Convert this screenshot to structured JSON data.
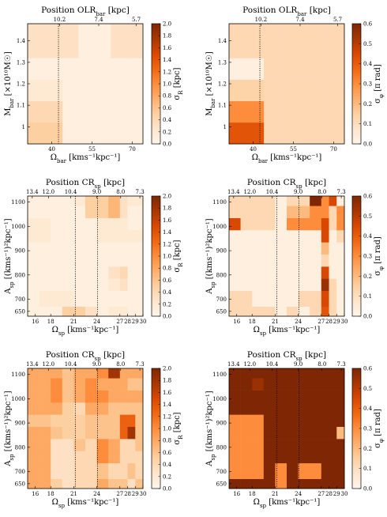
{
  "chart_data": [
    {
      "id": "p1",
      "type": "heatmap",
      "title": "Position OLR_bar [kpc]",
      "top_ticks": [
        "10.2",
        "7.4",
        "5.7"
      ],
      "top_tick_x": [
        42.9,
        57.5,
        71.5
      ],
      "xlabel": "Ω_bar [kms⁻¹kpc⁻¹]",
      "ylabel": "M_bar [×10¹⁰M☉]",
      "x_edges": [
        31,
        38,
        44,
        50,
        56,
        62,
        68,
        74
      ],
      "y_edges": [
        0.92,
        1.02,
        1.12,
        1.22,
        1.32,
        1.42,
        1.48
      ],
      "xlim": [
        31,
        74
      ],
      "ylim": [
        0.92,
        1.48
      ],
      "xticks": [
        40,
        55,
        70
      ],
      "yticks": [
        1.0,
        1.1,
        1.2,
        1.3,
        1.4
      ],
      "vlines": [
        42.5
      ],
      "values": [
        [
          0.5,
          0.5,
          0.1,
          0.1,
          0.1,
          0.1,
          0.1
        ],
        [
          0.4,
          0.4,
          0.1,
          0.1,
          0.1,
          0.1,
          0.1
        ],
        [
          0.2,
          0.2,
          0.1,
          0.1,
          0.1,
          0.1,
          0.1
        ],
        [
          0.1,
          0.1,
          0.1,
          0.1,
          0.1,
          0.1,
          0.1
        ],
        [
          0.3,
          0.3,
          0.3,
          0.1,
          0.1,
          0.3,
          0.3
        ],
        [
          0.3,
          0.3,
          0.3,
          0.1,
          0.1,
          0.3,
          0.3
        ]
      ],
      "colorbar": {
        "label": "σ_R [kpc]",
        "min": 0,
        "max": 2.0,
        "ticks": [
          0.0,
          0.2,
          0.4,
          0.6,
          0.8,
          1.0,
          1.2,
          1.4,
          1.6,
          1.8,
          2.0
        ]
      }
    },
    {
      "id": "p2",
      "type": "heatmap",
      "title": "Position OLR_bar [kpc]",
      "top_ticks": [
        "10.2",
        "7.4",
        "5.7"
      ],
      "top_tick_x": [
        42.9,
        57.5,
        71.5
      ],
      "xlabel": "Ω_bar [kms⁻¹kpc⁻¹]",
      "ylabel": "M_bar [×10¹⁰M☉]",
      "x_edges": [
        31,
        38,
        44,
        50,
        56,
        62,
        68,
        74
      ],
      "y_edges": [
        0.92,
        1.02,
        1.12,
        1.22,
        1.32,
        1.42,
        1.48
      ],
      "xlim": [
        31,
        74
      ],
      "ylim": [
        0.92,
        1.48
      ],
      "xticks": [
        40,
        55,
        70
      ],
      "yticks": [
        1.0,
        1.1,
        1.2,
        1.3,
        1.4
      ],
      "vlines": [
        42.5
      ],
      "values": [
        [
          0.42,
          0.42,
          0.12,
          0.12,
          0.12,
          0.12,
          0.12
        ],
        [
          0.3,
          0.3,
          0.12,
          0.12,
          0.12,
          0.12,
          0.12
        ],
        [
          0.14,
          0.14,
          0.12,
          0.12,
          0.12,
          0.12,
          0.12
        ],
        [
          0.03,
          0.03,
          0.12,
          0.12,
          0.12,
          0.12,
          0.12
        ],
        [
          0.12,
          0.12,
          0.12,
          0.12,
          0.12,
          0.12,
          0.12
        ],
        [
          0.12,
          0.12,
          0.12,
          0.12,
          0.12,
          0.12,
          0.12
        ]
      ],
      "colorbar": {
        "label": "σ_φ [π rad]",
        "min": 0,
        "max": 0.6,
        "ticks": [
          0.0,
          0.1,
          0.2,
          0.3,
          0.4,
          0.5,
          0.6
        ]
      }
    },
    {
      "id": "p3",
      "type": "heatmap",
      "title": "Position CR_sp [kpc]",
      "top_ticks": [
        "13.4",
        "12.0",
        "10.4",
        "9.0",
        "8.0",
        "7.3"
      ],
      "top_tick_x": [
        15.6,
        17.7,
        20.6,
        24.0,
        27.1,
        29.6
      ],
      "xlabel": "Ω_sp [kms⁻¹kpc⁻¹]",
      "ylabel": "A_sp [(kms⁻¹)²kpc⁻¹]",
      "x_edges": [
        15,
        16.5,
        18,
        19.5,
        21,
        22.5,
        24,
        25.5,
        27,
        28,
        29,
        30
      ],
      "y_edges": [
        630,
        670,
        735,
        785,
        835,
        885,
        935,
        985,
        1035,
        1085,
        1125
      ],
      "xlim": [
        15,
        30
      ],
      "ylim": [
        630,
        1125
      ],
      "xticks": [
        16,
        18,
        21,
        24,
        27,
        28,
        29,
        30
      ],
      "yticks": [
        650,
        700,
        800,
        900,
        1000,
        1100
      ],
      "vlines": [
        21.2,
        24.1
      ],
      "values": [
        [
          0.1,
          0.1,
          0.1,
          0.5,
          0.5,
          0.3,
          0.1,
          0.2,
          0.2,
          0.1,
          0.1
        ],
        [
          0.1,
          0.2,
          0.2,
          0.2,
          0.1,
          0.1,
          0.1,
          0.1,
          0.1,
          0.1,
          0.1
        ],
        [
          0.1,
          0.1,
          0.1,
          0.1,
          0.1,
          0.1,
          0.1,
          0.2,
          0.3,
          0.1,
          0.1
        ],
        [
          0.1,
          0.1,
          0.1,
          0.1,
          0.1,
          0.1,
          0.1,
          0.3,
          0.4,
          0.1,
          0.1
        ],
        [
          0.1,
          0.1,
          0.1,
          0.1,
          0.1,
          0.1,
          0.1,
          0.1,
          0.1,
          0.1,
          0.1
        ],
        [
          0.1,
          0.1,
          0.1,
          0.1,
          0.1,
          0.1,
          0.1,
          0.1,
          0.1,
          0.1,
          0.1
        ],
        [
          0.2,
          0.2,
          0.1,
          0.1,
          0.1,
          0.1,
          0.2,
          0.2,
          0.2,
          0.2,
          0.2
        ],
        [
          0.2,
          0.2,
          0.1,
          0.1,
          0.1,
          0.1,
          0.2,
          0.2,
          0.2,
          0.1,
          0.1
        ],
        [
          0.1,
          0.1,
          0.1,
          0.1,
          0.1,
          0.5,
          0.5,
          0.7,
          0.3,
          0.1,
          0.1
        ],
        [
          0.1,
          0.1,
          0.1,
          0.1,
          0.2,
          0.5,
          0.5,
          0.7,
          0.3,
          0.2,
          0.2
        ]
      ],
      "colorbar": {
        "label": "σ_R [kpc]",
        "min": 0,
        "max": 2.0,
        "ticks": [
          0.0,
          0.2,
          0.4,
          0.6,
          0.8,
          1.0,
          1.2,
          1.4,
          1.6,
          1.8,
          2.0
        ]
      }
    },
    {
      "id": "p4",
      "type": "heatmap",
      "title": "Position CR_sp [kpc]",
      "top_ticks": [
        "13.4",
        "12.0",
        "10.4",
        "9.0",
        "8.0",
        "7.3"
      ],
      "top_tick_x": [
        15.6,
        17.7,
        20.6,
        24.0,
        27.1,
        29.6
      ],
      "xlabel": "Ω_sp [kms⁻¹kpc⁻¹]",
      "ylabel": "A_sp [(kms⁻¹)²kpc⁻¹]",
      "x_edges": [
        15,
        16.5,
        18,
        19.5,
        21,
        22.5,
        24,
        25.5,
        27,
        28,
        29,
        30
      ],
      "y_edges": [
        630,
        670,
        735,
        785,
        835,
        885,
        935,
        985,
        1035,
        1085,
        1125
      ],
      "xlim": [
        15,
        30
      ],
      "ylim": [
        630,
        1125
      ],
      "xticks": [
        16,
        18,
        21,
        24,
        27,
        28,
        29,
        30
      ],
      "yticks": [
        650,
        700,
        800,
        900,
        1000,
        1100
      ],
      "vlines": [
        21.2,
        24.1
      ],
      "values": [
        [
          0.12,
          0.12,
          0.12,
          0.12,
          0.03,
          0.12,
          0.03,
          0.12,
          0.42,
          0.12,
          0.03
        ],
        [
          0.12,
          0.12,
          0.03,
          0.03,
          0.03,
          0.03,
          0.12,
          0.12,
          0.45,
          0.12,
          0.03
        ],
        [
          0.03,
          0.03,
          0.03,
          0.03,
          0.03,
          0.03,
          0.03,
          0.03,
          0.55,
          0.12,
          0.03
        ],
        [
          0.03,
          0.03,
          0.03,
          0.03,
          0.03,
          0.03,
          0.03,
          0.03,
          0.45,
          0.03,
          0.03
        ],
        [
          0.03,
          0.03,
          0.03,
          0.03,
          0.03,
          0.03,
          0.03,
          0.03,
          0.12,
          0.03,
          0.03
        ],
        [
          0.03,
          0.03,
          0.03,
          0.03,
          0.03,
          0.03,
          0.03,
          0.03,
          0.2,
          0.03,
          0.03
        ],
        [
          0.03,
          0.03,
          0.03,
          0.03,
          0.03,
          0.03,
          0.03,
          0.03,
          0.45,
          0.03,
          0.12
        ],
        [
          0.45,
          0.12,
          0.12,
          0.12,
          0.03,
          0.3,
          0.3,
          0.3,
          0.45,
          0.12,
          0.3
        ],
        [
          0.12,
          0.12,
          0.12,
          0.12,
          0.03,
          0.2,
          0.2,
          0.3,
          0.3,
          0.12,
          0.3
        ],
        [
          0.12,
          0.12,
          0.12,
          0.12,
          0.03,
          0.12,
          0.12,
          0.6,
          0.3,
          0.45,
          0.03
        ]
      ],
      "colorbar": {
        "label": "σ_φ [π rad]",
        "min": 0,
        "max": 0.6,
        "ticks": [
          0.0,
          0.1,
          0.2,
          0.3,
          0.4,
          0.5,
          0.6
        ]
      }
    },
    {
      "id": "p5",
      "type": "heatmap",
      "title": "Position CR_sp [kpc]",
      "top_ticks": [
        "13.4",
        "12.0",
        "10.4",
        "9.0",
        "8.0",
        "7.3"
      ],
      "top_tick_x": [
        15.6,
        17.7,
        20.6,
        24.0,
        27.1,
        29.6
      ],
      "xlabel": "Ω_sp [kms⁻¹kpc⁻¹]",
      "ylabel": "A_sp [(kms⁻¹)²kpc⁻¹]",
      "x_edges": [
        15,
        16.5,
        18,
        19.5,
        21,
        22.5,
        24,
        25.5,
        27,
        28,
        29,
        30
      ],
      "y_edges": [
        630,
        670,
        735,
        785,
        835,
        885,
        935,
        985,
        1035,
        1085,
        1125
      ],
      "xlim": [
        15,
        30
      ],
      "ylim": [
        630,
        1125
      ],
      "xticks": [
        16,
        18,
        21,
        24,
        27,
        28,
        29,
        30
      ],
      "yticks": [
        650,
        700,
        800,
        900,
        1000,
        1100
      ],
      "vlines": [
        21.2,
        24.1
      ],
      "values": [
        [
          0.8,
          0.8,
          0.5,
          0.3,
          0.4,
          0.4,
          0.8,
          0.6,
          0.6,
          0.3,
          0.6
        ],
        [
          0.8,
          0.8,
          0.3,
          0.3,
          0.4,
          0.4,
          0.6,
          0.4,
          0.4,
          0.6,
          0.4
        ],
        [
          0.8,
          0.8,
          0.3,
          0.3,
          0.4,
          0.4,
          1.0,
          0.8,
          0.4,
          0.4,
          0.4
        ],
        [
          0.8,
          0.8,
          0.3,
          0.3,
          0.6,
          0.4,
          1.0,
          0.8,
          0.4,
          0.4,
          0.6
        ],
        [
          0.8,
          0.8,
          0.6,
          0.5,
          0.5,
          0.6,
          0.6,
          0.6,
          1.3,
          1.8,
          0.6
        ],
        [
          0.6,
          0.6,
          0.5,
          0.5,
          0.5,
          0.6,
          0.6,
          0.6,
          1.3,
          1.3,
          0.6
        ],
        [
          0.8,
          0.8,
          0.8,
          0.5,
          0.4,
          0.8,
          0.8,
          0.6,
          0.6,
          0.6,
          0.6
        ],
        [
          0.8,
          0.8,
          1.0,
          0.6,
          0.8,
          1.0,
          1.0,
          0.8,
          0.8,
          0.8,
          0.8
        ],
        [
          0.8,
          0.8,
          1.0,
          0.6,
          0.8,
          1.0,
          0.8,
          0.8,
          0.8,
          0.6,
          0.6
        ],
        [
          0.8,
          0.8,
          0.8,
          0.6,
          0.8,
          0.8,
          1.0,
          1.8,
          0.8,
          0.8,
          0.8
        ]
      ],
      "colorbar": {
        "label": "σ_R [kpc]",
        "min": 0,
        "max": 2.0,
        "ticks": [
          0.0,
          0.2,
          0.4,
          0.6,
          0.8,
          1.0,
          1.2,
          1.4,
          1.6,
          1.8,
          2.0
        ]
      }
    },
    {
      "id": "p6",
      "type": "heatmap",
      "title": "Position CR_sp [kpc]",
      "top_ticks": [
        "13.4",
        "12.0",
        "10.4",
        "9.0",
        "8.0",
        "7.3"
      ],
      "top_tick_x": [
        15.6,
        17.7,
        20.6,
        24.0,
        27.1,
        29.6
      ],
      "xlabel": "Ω_sp [kms⁻¹kpc⁻¹]",
      "ylabel": "A_sp [(kms⁻¹)²kpc⁻¹]",
      "x_edges": [
        15,
        16.5,
        18,
        19.5,
        21,
        22.5,
        24,
        25.5,
        27,
        28,
        29,
        30
      ],
      "y_edges": [
        630,
        670,
        735,
        785,
        835,
        885,
        935,
        985,
        1035,
        1085,
        1125
      ],
      "xlim": [
        15,
        30
      ],
      "ylim": [
        630,
        1125
      ],
      "xticks": [
        16,
        18,
        21,
        24,
        27,
        28,
        29,
        30
      ],
      "yticks": [
        650,
        700,
        800,
        900,
        1000,
        1100
      ],
      "vlines": [
        21.2,
        24.1
      ],
      "values": [
        [
          0.6,
          0.6,
          0.6,
          0.6,
          0.3,
          0.6,
          0.6,
          0.6,
          0.6,
          0.6,
          0.6
        ],
        [
          0.3,
          0.3,
          0.3,
          0.6,
          0.3,
          0.6,
          0.3,
          0.3,
          0.6,
          0.6,
          0.6
        ],
        [
          0.3,
          0.3,
          0.3,
          0.6,
          0.6,
          0.6,
          0.6,
          0.6,
          0.6,
          0.6,
          0.6
        ],
        [
          0.3,
          0.3,
          0.3,
          0.6,
          0.6,
          0.6,
          0.6,
          0.6,
          0.6,
          0.6,
          0.6
        ],
        [
          0.3,
          0.3,
          0.3,
          0.6,
          0.6,
          0.6,
          0.6,
          0.6,
          0.6,
          0.6,
          0.2
        ],
        [
          0.3,
          0.3,
          0.3,
          0.6,
          0.6,
          0.6,
          0.6,
          0.6,
          0.6,
          0.6,
          0.6
        ],
        [
          0.6,
          0.6,
          0.6,
          0.6,
          0.6,
          0.6,
          0.6,
          0.6,
          0.6,
          0.6,
          0.6
        ],
        [
          0.6,
          0.6,
          0.6,
          0.6,
          0.6,
          0.6,
          0.6,
          0.6,
          0.6,
          0.6,
          0.6
        ],
        [
          0.6,
          0.6,
          0.55,
          0.6,
          0.6,
          0.6,
          0.6,
          0.6,
          0.6,
          0.6,
          0.6
        ],
        [
          0.6,
          0.6,
          0.6,
          0.6,
          0.6,
          0.6,
          0.6,
          0.6,
          0.6,
          0.6,
          0.6
        ]
      ],
      "colorbar": {
        "label": "σ_φ [π rad]",
        "min": 0,
        "max": 0.6,
        "ticks": [
          0.0,
          0.1,
          0.2,
          0.3,
          0.4,
          0.5,
          0.6
        ]
      }
    }
  ]
}
